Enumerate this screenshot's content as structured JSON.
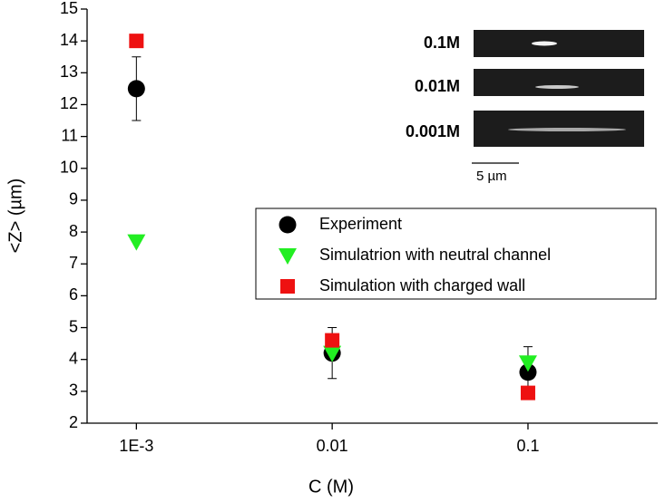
{
  "chart_data": {
    "type": "scatter",
    "x_label": "C (M)",
    "y_label": "<Z> (µm)",
    "x": [
      0.001,
      0.01,
      0.1
    ],
    "series": [
      {
        "name": "Experiment",
        "color": "#000000",
        "marker": "circle",
        "values": [
          12.5,
          4.2,
          3.6
        ],
        "errors": [
          1,
          0.8,
          0.8
        ]
      },
      {
        "name": "Simulatrion with neutral channel",
        "color": "#22ee22",
        "marker": "triangle-down",
        "values": [
          7.7,
          4.2,
          3.9
        ]
      },
      {
        "name": "Simulation with charged wall",
        "color": "#ee1111",
        "marker": "square",
        "values": [
          14.0,
          4.6,
          2.95
        ]
      }
    ],
    "xlog": true,
    "xlim": [
      0.00056,
      0.46
    ],
    "xticks": [
      {
        "value": 0.001,
        "label": "1E-3"
      },
      0.01,
      0.1
    ],
    "ylim": [
      2,
      15
    ],
    "yticks": [
      2,
      3,
      4,
      5,
      6,
      7,
      8,
      9,
      10,
      11,
      12,
      13,
      14,
      15
    ],
    "legend": "right",
    "inset": {
      "labels": [
        "0.1M",
        "0.01M",
        "0.001M"
      ],
      "scale_bar": "5 µm"
    }
  }
}
